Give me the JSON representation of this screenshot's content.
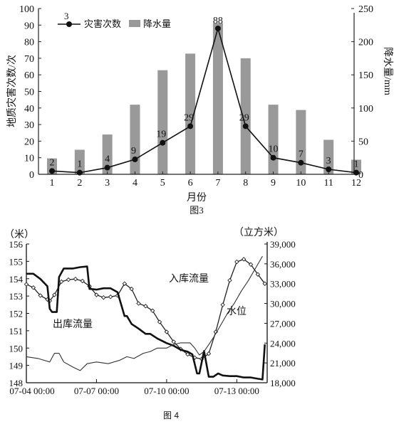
{
  "figure3": {
    "caption": "图3",
    "legend": {
      "line": "灾害次数",
      "bar": "降水量"
    },
    "chart_data": {
      "type": "bar",
      "categories": [
        "1",
        "2",
        "3",
        "4",
        "5",
        "6",
        "7",
        "8",
        "9",
        "10",
        "11",
        "12"
      ],
      "xlabel": "月份",
      "ylabel_left": "地质灾害次数/次",
      "ylabel_right": "降水量/mm",
      "ylim_left": [
        0,
        100
      ],
      "yticks_left": [
        "0",
        "10",
        "20",
        "30",
        "40",
        "50",
        "60",
        "70",
        "80",
        "90",
        "100"
      ],
      "ylim_right": [
        0,
        250
      ],
      "yticks_right": [
        "0",
        "50",
        "100",
        "150",
        "200",
        "250"
      ],
      "series": [
        {
          "name": "降水量",
          "type": "bar",
          "axis": "right",
          "values": [
            24,
            37,
            60,
            105,
            157,
            182,
            228,
            175,
            105,
            97,
            52,
            22
          ]
        },
        {
          "name": "灾害次数",
          "type": "line",
          "axis": "left",
          "values": [
            2,
            1,
            4,
            9,
            19,
            29,
            88,
            29,
            10,
            7,
            3,
            1
          ]
        }
      ],
      "data_labels": [
        "2",
        "1",
        "4",
        "9",
        "19",
        "29",
        "88",
        "29",
        "10",
        "7",
        "3",
        "1"
      ],
      "legend_marker_label": "3"
    }
  },
  "figure4": {
    "caption": "图 4",
    "chart_data": {
      "type": "line",
      "ylabel_left": "（米）",
      "ylabel_right": "（立方米）",
      "ylim_left": [
        148,
        156
      ],
      "yticks_left": [
        "148",
        "149",
        "150",
        "151",
        "152",
        "153",
        "154",
        "155",
        "156"
      ],
      "ylim_right": [
        18000,
        39000
      ],
      "yticks_right": [
        "18,000",
        "21,000",
        "24,000",
        "27,000",
        "30,000",
        "33,000",
        "36,000",
        "39,000"
      ],
      "xlim_days": [
        0,
        10.3
      ],
      "xticks": [
        "07-04 00:00",
        "07-07 00:00",
        "07-10 00:00",
        "07-13 00:00"
      ],
      "series": [
        {
          "name": "入库流量",
          "axis": "right",
          "x": [
            0,
            0.3,
            0.6,
            0.9,
            1.0,
            1.2,
            1.5,
            1.8,
            2.1,
            2.4,
            2.7,
            3.0,
            3.3,
            3.6,
            3.9,
            4.2,
            4.5,
            4.8,
            5.1,
            5.4,
            5.7,
            6.0,
            6.3,
            6.6,
            6.9,
            7.2,
            7.5,
            7.8,
            8.1,
            8.4,
            8.7,
            9.0,
            9.3,
            9.6,
            9.9,
            10.2
          ],
          "y": [
            32900,
            32400,
            31200,
            30600,
            30400,
            31300,
            33300,
            33600,
            33700,
            33400,
            32600,
            31300,
            30900,
            31000,
            31200,
            33000,
            32200,
            30000,
            29600,
            28900,
            27200,
            25700,
            24200,
            23100,
            22300,
            21800,
            21600,
            22400,
            25700,
            29800,
            33500,
            36300,
            36700,
            35900,
            34400,
            33000
          ]
        },
        {
          "name": "出库流量",
          "axis": "right",
          "x": [
            0,
            0.3,
            0.6,
            0.9,
            1.0,
            1.1,
            1.3,
            1.4,
            1.6,
            2.0,
            2.3,
            2.6,
            2.7,
            3.0,
            3.3,
            3.6,
            3.9,
            4.2,
            4.3,
            4.5,
            4.8,
            5.1,
            5.3,
            5.6,
            6.0,
            6.3,
            6.6,
            6.9,
            7.1,
            7.3,
            7.4,
            7.6,
            7.8,
            8.0,
            8.2,
            8.4,
            8.7,
            9.0,
            9.3,
            9.6,
            9.9,
            10.1,
            10.2
          ],
          "y": [
            34500,
            34500,
            33700,
            32600,
            29200,
            28700,
            28700,
            34000,
            35300,
            35300,
            35500,
            35600,
            32200,
            32100,
            32300,
            32300,
            31700,
            28100,
            28100,
            26900,
            26200,
            25400,
            25400,
            24700,
            24000,
            23600,
            23000,
            22700,
            22300,
            19400,
            19400,
            22800,
            18900,
            18900,
            19400,
            19100,
            19000,
            19000,
            18800,
            18800,
            18600,
            18500,
            23800
          ]
        },
        {
          "name": "水位",
          "axis": "left",
          "x": [
            0,
            0.5,
            1.0,
            1.2,
            1.4,
            1.6,
            2.0,
            2.3,
            2.6,
            3.0,
            3.5,
            4.0,
            4.3,
            4.6,
            5.0,
            5.3,
            5.6,
            6.0,
            6.3,
            6.6,
            7.0,
            7.2,
            7.4,
            7.6,
            7.8,
            8.0,
            8.3,
            8.6,
            8.9,
            9.2,
            9.5,
            9.8,
            10.1
          ],
          "y": [
            149.5,
            149.4,
            149.2,
            149.7,
            149.7,
            149.2,
            148.9,
            148.7,
            149.1,
            149.2,
            149.1,
            149.3,
            149.5,
            149.4,
            149.7,
            149.8,
            150.0,
            150.0,
            150.2,
            150.3,
            150.3,
            150.0,
            149.6,
            149.8,
            150.2,
            150.6,
            151.3,
            152.0,
            152.6,
            153.3,
            153.9,
            154.6,
            155.3
          ]
        }
      ],
      "annotations": [
        "入库流量",
        "出库流量",
        "水位"
      ]
    }
  }
}
